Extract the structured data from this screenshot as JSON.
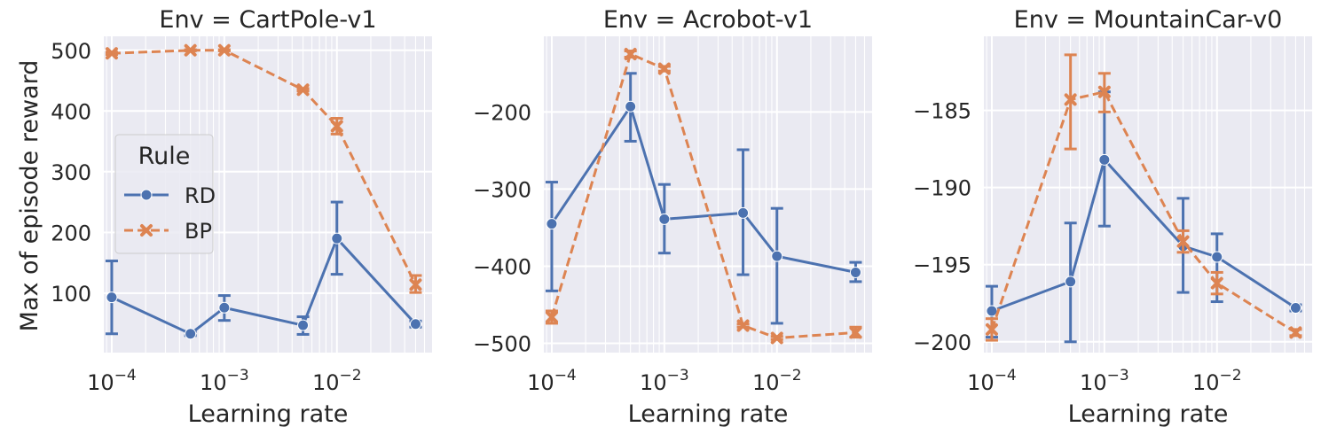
{
  "figure": {
    "ylabel": "Max of episode reward",
    "legend": {
      "title": "Rule",
      "placement": "center-left",
      "panel": 0
    }
  },
  "colors": {
    "RD": "#4c72b0",
    "BP": "#dd8452",
    "background": "#eaeaf2",
    "grid": "#ffffff",
    "text": "#262626"
  },
  "chart_data": [
    {
      "type": "line",
      "title": "Env = CartPole-v1",
      "xlabel": "Learning rate",
      "ylabel": "Max of episode reward",
      "xscale": "log",
      "xlim": [
        8.5e-05,
        0.07
      ],
      "ylim": [
        2,
        523
      ],
      "xtick_labels": [
        {
          "value": 0.0001,
          "base": "10",
          "exp": "−4"
        },
        {
          "value": 0.001,
          "base": "10",
          "exp": "−3"
        },
        {
          "value": 0.01,
          "base": "10",
          "exp": "−2"
        }
      ],
      "yticks": [
        100,
        200,
        300,
        400,
        500
      ],
      "ytick_labels": [
        "100",
        "200",
        "300",
        "400",
        "500"
      ],
      "grid": true,
      "x": [
        0.0001,
        0.0005,
        0.001,
        0.005,
        0.01,
        0.05
      ],
      "series": [
        {
          "name": "RD",
          "marker": "circle",
          "linestyle": "solid",
          "values": [
            93,
            33,
            76,
            47,
            190,
            49
          ],
          "err_low": [
            33,
            30,
            55,
            32,
            131,
            44
          ],
          "err_high": [
            153,
            37,
            96,
            61,
            250,
            54
          ]
        },
        {
          "name": "BP",
          "marker": "x",
          "linestyle": "dashed",
          "values": [
            495,
            500,
            500,
            435,
            375,
            114
          ],
          "err_low": [
            493,
            499,
            499,
            433,
            362,
            101
          ],
          "err_high": [
            497,
            501,
            501,
            437,
            388,
            129
          ]
        }
      ]
    },
    {
      "type": "line",
      "title": "Env = Acrobot-v1",
      "xlabel": "Learning rate",
      "xscale": "log",
      "xlim": [
        8.5e-05,
        0.07
      ],
      "ylim": [
        -512,
        -102
      ],
      "xtick_labels": [
        {
          "value": 0.0001,
          "base": "10",
          "exp": "−4"
        },
        {
          "value": 0.001,
          "base": "10",
          "exp": "−3"
        },
        {
          "value": 0.01,
          "base": "10",
          "exp": "−2"
        }
      ],
      "yticks": [
        -500,
        -400,
        -300,
        -200
      ],
      "ytick_labels": [
        "−500",
        "−400",
        "−300",
        "−200"
      ],
      "grid": true,
      "x": [
        0.0001,
        0.0005,
        0.001,
        0.005,
        0.01,
        0.05
      ],
      "series": [
        {
          "name": "RD",
          "marker": "circle",
          "linestyle": "solid",
          "values": [
            -345,
            -193,
            -339,
            -331,
            -387,
            -408
          ],
          "err_low": [
            -432,
            -238,
            -383,
            -411,
            -474,
            -420
          ],
          "err_high": [
            -291,
            -150,
            -294,
            -249,
            -325,
            -395
          ]
        },
        {
          "name": "BP",
          "marker": "x",
          "linestyle": "dashed",
          "values": [
            -466,
            -125,
            -144,
            -477,
            -493,
            -486
          ],
          "err_low": [
            -474,
            -129,
            -147,
            -479,
            -495,
            -492
          ],
          "err_high": [
            -458,
            -121,
            -141,
            -475,
            -491,
            -479
          ]
        }
      ]
    },
    {
      "type": "line",
      "title": "Env = MountainCar-v0",
      "xlabel": "Learning rate",
      "xscale": "log",
      "xlim": [
        8.5e-05,
        0.07
      ],
      "ylim": [
        -200.7,
        -180.2
      ],
      "xtick_labels": [
        {
          "value": 0.0001,
          "base": "10",
          "exp": "−4"
        },
        {
          "value": 0.001,
          "base": "10",
          "exp": "−3"
        },
        {
          "value": 0.01,
          "base": "10",
          "exp": "−2"
        }
      ],
      "yticks": [
        -200,
        -195,
        -190,
        -185
      ],
      "ytick_labels": [
        "−200",
        "−195",
        "−190",
        "−185"
      ],
      "grid": true,
      "x": [
        0.0001,
        0.0005,
        0.001,
        0.005,
        0.01,
        0.05
      ],
      "series": [
        {
          "name": "RD",
          "marker": "circle",
          "linestyle": "solid",
          "values": [
            -198.0,
            -196.1,
            -188.2,
            -193.8,
            -194.5,
            -197.8
          ],
          "err_low": [
            -199.7,
            -200.0,
            -192.5,
            -196.8,
            -197.4,
            -198.0
          ],
          "err_high": [
            -196.4,
            -192.3,
            -183.8,
            -190.7,
            -193.0,
            -197.6
          ]
        },
        {
          "name": "BP",
          "marker": "x",
          "linestyle": "dashed",
          "values": [
            -199.2,
            -184.3,
            -183.8,
            -193.5,
            -196.2,
            -199.4
          ],
          "err_low": [
            -199.9,
            -187.5,
            -185.1,
            -194.2,
            -196.9,
            -199.6
          ],
          "err_high": [
            -198.5,
            -181.4,
            -182.6,
            -192.8,
            -195.5,
            -199.2
          ]
        }
      ]
    }
  ]
}
